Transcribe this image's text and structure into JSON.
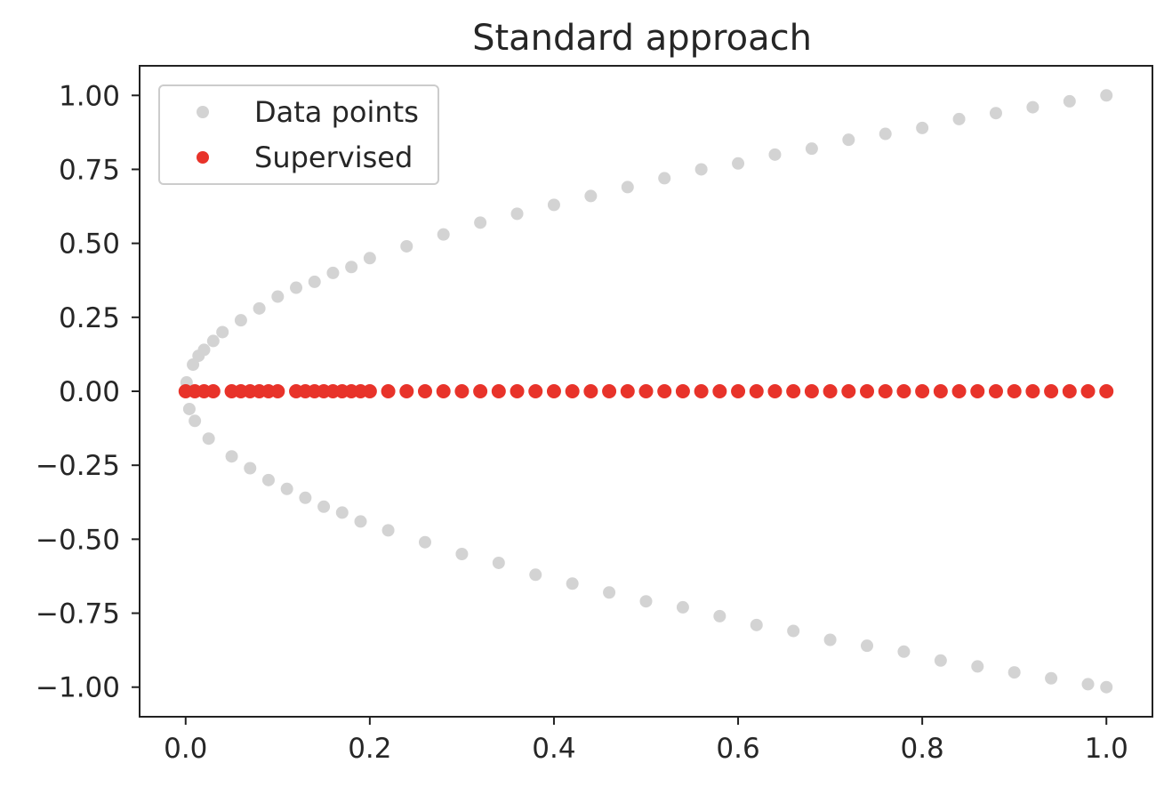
{
  "chart_data": {
    "type": "scatter",
    "title": "Standard approach",
    "xlabel": "",
    "ylabel": "",
    "xlim": [
      -0.05,
      1.05
    ],
    "ylim": [
      -1.1,
      1.1
    ],
    "xticks": [
      0.0,
      0.2,
      0.4,
      0.6,
      0.8,
      1.0
    ],
    "xtick_labels": [
      "0.0",
      "0.2",
      "0.4",
      "0.6",
      "0.8",
      "1.0"
    ],
    "yticks": [
      1.0,
      0.75,
      0.5,
      0.25,
      0.0,
      -0.25,
      -0.5,
      -0.75,
      -1.0
    ],
    "ytick_labels": [
      "1.00",
      "0.75",
      "0.50",
      "0.25",
      "0.00",
      "−0.25",
      "−0.50",
      "−0.75",
      "−1.00"
    ],
    "grid": false,
    "legend_position": "top-left",
    "series": [
      {
        "name": "Data points",
        "color": "#d3d3d3",
        "relation": "x = y^2",
        "points": [
          [
            0.0,
            0.0
          ],
          [
            0.001,
            0.03
          ],
          [
            0.004,
            -0.06
          ],
          [
            0.008,
            0.09
          ],
          [
            0.01,
            -0.1
          ],
          [
            0.014,
            0.12
          ],
          [
            0.02,
            0.14
          ],
          [
            0.025,
            -0.16
          ],
          [
            0.03,
            0.17
          ],
          [
            0.04,
            0.2
          ],
          [
            0.05,
            -0.22
          ],
          [
            0.06,
            0.24
          ],
          [
            0.07,
            -0.26
          ],
          [
            0.08,
            0.28
          ],
          [
            0.09,
            -0.3
          ],
          [
            0.1,
            0.32
          ],
          [
            0.11,
            -0.33
          ],
          [
            0.12,
            0.35
          ],
          [
            0.13,
            -0.36
          ],
          [
            0.14,
            0.37
          ],
          [
            0.15,
            -0.39
          ],
          [
            0.16,
            0.4
          ],
          [
            0.17,
            -0.41
          ],
          [
            0.18,
            0.42
          ],
          [
            0.19,
            -0.44
          ],
          [
            0.2,
            0.45
          ],
          [
            0.22,
            -0.47
          ],
          [
            0.24,
            0.49
          ],
          [
            0.26,
            -0.51
          ],
          [
            0.28,
            0.53
          ],
          [
            0.3,
            -0.55
          ],
          [
            0.32,
            0.57
          ],
          [
            0.34,
            -0.58
          ],
          [
            0.36,
            0.6
          ],
          [
            0.38,
            -0.62
          ],
          [
            0.4,
            0.63
          ],
          [
            0.42,
            -0.65
          ],
          [
            0.44,
            0.66
          ],
          [
            0.46,
            -0.68
          ],
          [
            0.48,
            0.69
          ],
          [
            0.5,
            -0.71
          ],
          [
            0.52,
            0.72
          ],
          [
            0.54,
            -0.73
          ],
          [
            0.56,
            0.75
          ],
          [
            0.58,
            -0.76
          ],
          [
            0.6,
            0.77
          ],
          [
            0.62,
            -0.79
          ],
          [
            0.64,
            0.8
          ],
          [
            0.66,
            -0.81
          ],
          [
            0.68,
            0.82
          ],
          [
            0.7,
            -0.84
          ],
          [
            0.72,
            0.85
          ],
          [
            0.74,
            -0.86
          ],
          [
            0.76,
            0.87
          ],
          [
            0.78,
            -0.88
          ],
          [
            0.8,
            0.89
          ],
          [
            0.82,
            -0.91
          ],
          [
            0.84,
            0.92
          ],
          [
            0.86,
            -0.93
          ],
          [
            0.88,
            0.94
          ],
          [
            0.9,
            -0.95
          ],
          [
            0.92,
            0.96
          ],
          [
            0.94,
            -0.97
          ],
          [
            0.96,
            0.98
          ],
          [
            0.98,
            -0.99
          ],
          [
            1.0,
            1.0
          ],
          [
            1.0,
            -1.0
          ]
        ]
      },
      {
        "name": "Supervised",
        "color": "#e8332a",
        "y_value": 0.0,
        "x_values": [
          0.0,
          0.01,
          0.02,
          0.03,
          0.05,
          0.06,
          0.07,
          0.08,
          0.09,
          0.1,
          0.12,
          0.13,
          0.14,
          0.15,
          0.16,
          0.17,
          0.18,
          0.19,
          0.2,
          0.22,
          0.24,
          0.26,
          0.28,
          0.3,
          0.32,
          0.34,
          0.36,
          0.38,
          0.4,
          0.42,
          0.44,
          0.46,
          0.48,
          0.5,
          0.52,
          0.54,
          0.56,
          0.58,
          0.6,
          0.62,
          0.64,
          0.66,
          0.68,
          0.7,
          0.72,
          0.74,
          0.76,
          0.78,
          0.8,
          0.82,
          0.84,
          0.86,
          0.88,
          0.9,
          0.92,
          0.94,
          0.96,
          0.98,
          1.0
        ]
      }
    ]
  }
}
